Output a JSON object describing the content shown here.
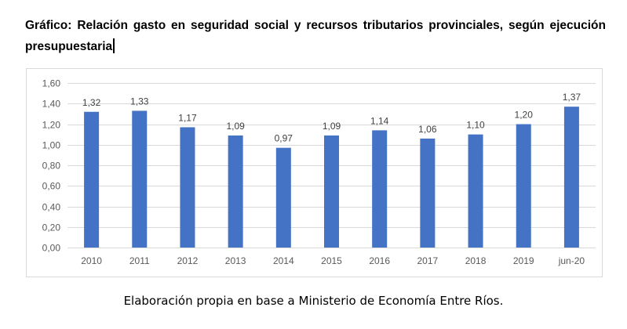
{
  "document": {
    "title": "Gráfico: Relación gasto en seguridad social y recursos tributarios provinciales, según ejecución presupuestaria",
    "caption": "Elaboración propia en base a Ministerio de Economía Entre Ríos."
  },
  "colors": {
    "bar": "#4472c4",
    "gridline": "#d9d9d9",
    "axis_text": "#595959"
  },
  "chart_data": {
    "type": "bar",
    "title": "",
    "xlabel": "",
    "ylabel": "",
    "categories": [
      "2010",
      "2011",
      "2012",
      "2013",
      "2014",
      "2015",
      "2016",
      "2017",
      "2018",
      "2019",
      "jun-20"
    ],
    "values": [
      1.32,
      1.33,
      1.17,
      1.09,
      0.97,
      1.09,
      1.14,
      1.06,
      1.1,
      1.2,
      1.37
    ],
    "value_labels": [
      "1,32",
      "1,33",
      "1,17",
      "1,09",
      "0,97",
      "1,09",
      "1,14",
      "1,06",
      "1,10",
      "1,20",
      "1,37"
    ],
    "ylim": [
      0,
      1.6
    ],
    "yticks": [
      0,
      0.2,
      0.4,
      0.6,
      0.8,
      1.0,
      1.2,
      1.4,
      1.6
    ],
    "ytick_labels": [
      "0,00",
      "0,20",
      "0,40",
      "0,60",
      "0,80",
      "1,00",
      "1,20",
      "1,40",
      "1,60"
    ],
    "grid": true,
    "legend": "none"
  }
}
